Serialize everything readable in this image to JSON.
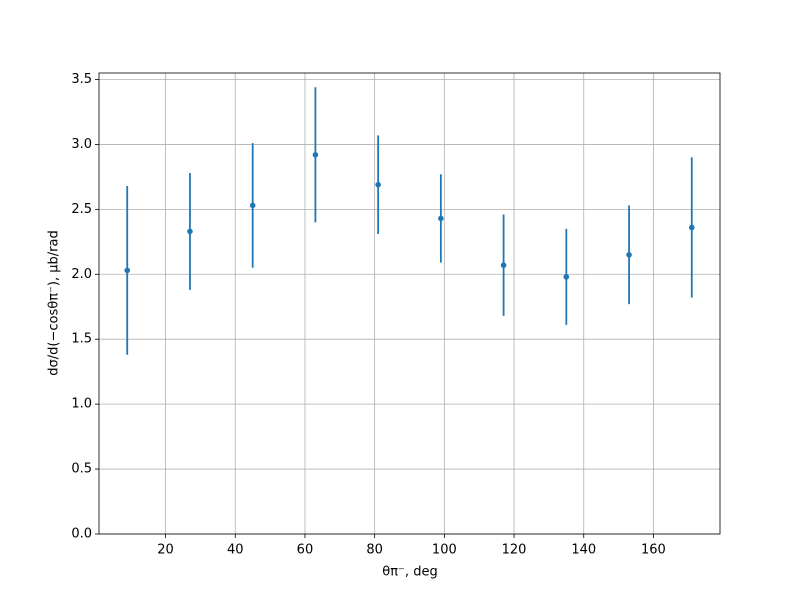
{
  "chart_data": {
    "type": "errorbar",
    "xlabel": "θπ⁻, deg",
    "ylabel": "dσ/d(−cosθπ⁻), μb/rad",
    "x": [
      9,
      27,
      45,
      63,
      81,
      99,
      117,
      135,
      153,
      171
    ],
    "series": [
      {
        "color": "#1f77b4",
        "values": [
          2.03,
          2.33,
          2.53,
          2.92,
          2.69,
          2.43,
          2.07,
          1.98,
          2.15,
          2.36
        ],
        "errors": [
          0.65,
          0.45,
          0.48,
          0.52,
          0.38,
          0.34,
          0.39,
          0.37,
          0.38,
          0.54
        ]
      }
    ],
    "xlim": [
      0.9,
      179.1
    ],
    "ylim": [
      0,
      3.55
    ],
    "xticks": [
      20,
      40,
      60,
      80,
      100,
      120,
      140,
      160
    ],
    "yticks": [
      {
        "value": 0,
        "label": "0.0"
      },
      0.5,
      {
        "value": 1,
        "label": "1.0"
      },
      1.5,
      {
        "value": 2,
        "label": "2.0"
      },
      2.5,
      {
        "value": 3,
        "label": "3.0"
      },
      3.5
    ],
    "grid": true
  }
}
